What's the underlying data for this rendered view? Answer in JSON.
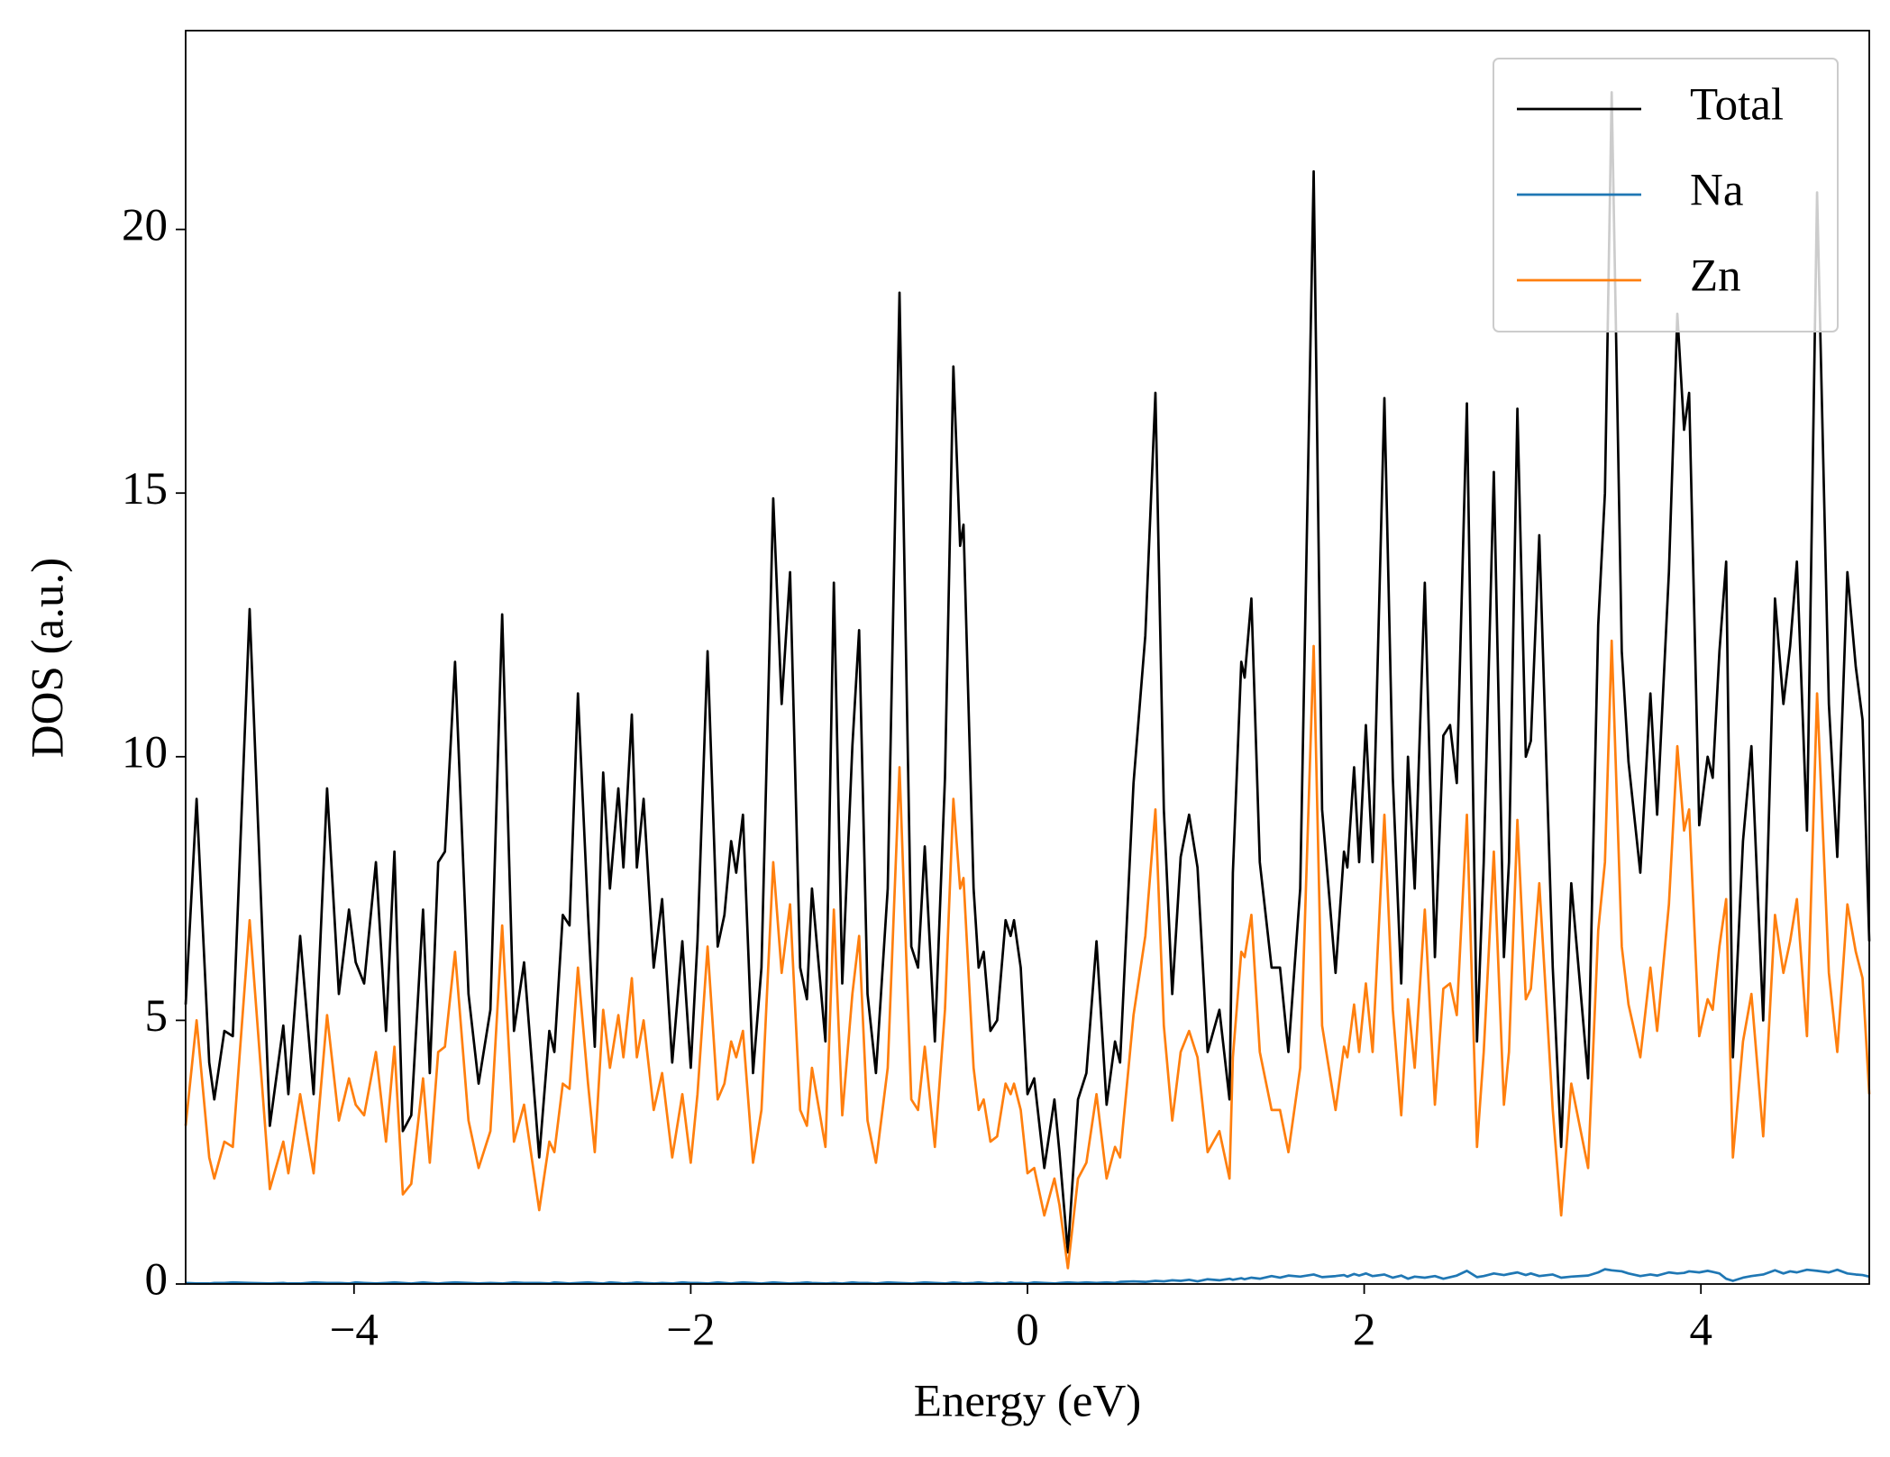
{
  "chart_data": {
    "type": "line",
    "xlabel": "Energy (eV)",
    "ylabel": "DOS (a.u.)",
    "xlim": [
      -5,
      5
    ],
    "ylim": [
      0,
      23.77
    ],
    "xticks": [
      {
        "value": -4,
        "label": "−4"
      },
      {
        "value": -2,
        "label": "−2"
      },
      0,
      2,
      4
    ],
    "yticks": [
      0,
      5,
      10,
      15,
      20
    ],
    "legend": "upper right",
    "x": [
      -5.0,
      -4.935,
      -4.86,
      -4.83,
      -4.77,
      -4.72,
      -4.62,
      -4.5,
      -4.42,
      -4.39,
      -4.32,
      -4.24,
      -4.16,
      -4.09,
      -4.03,
      -3.99,
      -3.94,
      -3.87,
      -3.81,
      -3.76,
      -3.71,
      -3.66,
      -3.59,
      -3.55,
      -3.5,
      -3.46,
      -3.4,
      -3.32,
      -3.26,
      -3.19,
      -3.12,
      -3.05,
      -2.99,
      -2.9,
      -2.84,
      -2.81,
      -2.76,
      -2.72,
      -2.67,
      -2.61,
      -2.57,
      -2.52,
      -2.48,
      -2.43,
      -2.4,
      -2.35,
      -2.32,
      -2.28,
      -2.22,
      -2.17,
      -2.11,
      -2.05,
      -2.0,
      -1.96,
      -1.9,
      -1.84,
      -1.8,
      -1.76,
      -1.73,
      -1.69,
      -1.63,
      -1.58,
      -1.51,
      -1.46,
      -1.41,
      -1.35,
      -1.31,
      -1.28,
      -1.2,
      -1.15,
      -1.1,
      -1.04,
      -1.0,
      -0.95,
      -0.9,
      -0.83,
      -0.76,
      -0.69,
      -0.65,
      -0.61,
      -0.55,
      -0.49,
      -0.44,
      -0.4,
      -0.38,
      -0.32,
      -0.29,
      -0.26,
      -0.22,
      -0.18,
      -0.13,
      -0.1,
      -0.08,
      -0.04,
      0.0,
      0.04,
      0.1,
      0.16,
      0.19,
      0.24,
      0.3,
      0.35,
      0.41,
      0.47,
      0.52,
      0.55,
      0.63,
      0.7,
      0.76,
      0.81,
      0.86,
      0.91,
      0.96,
      1.01,
      1.07,
      1.14,
      1.2,
      1.22,
      1.27,
      1.29,
      1.33,
      1.38,
      1.45,
      1.5,
      1.55,
      1.62,
      1.7,
      1.75,
      1.83,
      1.88,
      1.9,
      1.94,
      1.97,
      2.01,
      2.05,
      2.12,
      2.17,
      2.22,
      2.26,
      2.3,
      2.36,
      2.42,
      2.47,
      2.51,
      2.55,
      2.61,
      2.67,
      2.71,
      2.77,
      2.83,
      2.86,
      2.91,
      2.96,
      2.99,
      3.04,
      3.12,
      3.17,
      3.23,
      3.33,
      3.39,
      3.43,
      3.47,
      3.53,
      3.57,
      3.64,
      3.7,
      3.74,
      3.81,
      3.86,
      3.9,
      3.93,
      3.99,
      4.04,
      4.07,
      4.11,
      4.15,
      4.19,
      4.25,
      4.3,
      4.37,
      4.44,
      4.49,
      4.53,
      4.57,
      4.63,
      4.69,
      4.76,
      4.81,
      4.87,
      4.92,
      4.96,
      5.0
    ],
    "series": [
      {
        "name": "Total",
        "color": "#000000",
        "values": [
          5.3,
          9.2,
          4.2,
          3.5,
          4.8,
          4.7,
          12.8,
          3.0,
          4.9,
          3.6,
          6.6,
          3.6,
          9.4,
          5.5,
          7.1,
          6.1,
          5.7,
          8.0,
          4.8,
          8.2,
          2.9,
          3.2,
          7.1,
          4.0,
          8.0,
          8.2,
          11.8,
          5.5,
          3.8,
          5.2,
          12.7,
          4.8,
          6.1,
          2.4,
          4.8,
          4.4,
          7.0,
          6.8,
          11.2,
          7.0,
          4.5,
          9.7,
          7.5,
          9.4,
          7.9,
          10.8,
          7.9,
          9.2,
          6.0,
          7.3,
          4.2,
          6.5,
          4.1,
          6.5,
          12.0,
          6.4,
          7.0,
          8.4,
          7.8,
          8.9,
          4.0,
          6.0,
          14.9,
          11.0,
          13.5,
          6.0,
          5.4,
          7.5,
          4.6,
          13.3,
          5.7,
          10.2,
          12.4,
          5.5,
          4.0,
          7.5,
          18.8,
          6.4,
          6.0,
          8.3,
          4.6,
          9.6,
          17.4,
          14.0,
          14.4,
          7.5,
          6.0,
          6.3,
          4.8,
          5.0,
          6.9,
          6.6,
          6.9,
          6.0,
          3.6,
          3.9,
          2.2,
          3.5,
          2.5,
          0.6,
          3.5,
          4.0,
          6.5,
          3.4,
          4.6,
          4.2,
          9.5,
          12.3,
          16.9,
          9.0,
          5.5,
          8.1,
          8.9,
          7.9,
          4.4,
          5.2,
          3.5,
          7.8,
          11.8,
          11.5,
          13.0,
          8.0,
          6.0,
          6.0,
          4.4,
          7.5,
          21.1,
          9.0,
          5.9,
          8.2,
          7.9,
          9.8,
          8.0,
          10.6,
          8.0,
          16.8,
          9.6,
          5.7,
          10.0,
          7.5,
          13.3,
          6.2,
          10.4,
          10.6,
          9.5,
          16.7,
          4.6,
          8.0,
          15.4,
          6.2,
          8.0,
          16.6,
          10.0,
          10.3,
          14.2,
          6.0,
          2.6,
          7.6,
          3.9,
          12.5,
          15.0,
          22.6,
          12.0,
          9.9,
          7.8,
          11.2,
          8.9,
          13.5,
          18.4,
          16.2,
          16.9,
          8.7,
          10.0,
          9.6,
          12.0,
          13.7,
          4.3,
          8.4,
          10.2,
          5.0,
          13.0,
          11.0,
          12.1,
          13.7,
          8.6,
          20.7,
          11.0,
          8.1,
          13.5,
          11.7,
          10.7,
          6.5
        ]
      },
      {
        "name": "Na",
        "color": "#1f77b4",
        "values": [
          0.02,
          0.01,
          0.01,
          0.02,
          0.02,
          0.03,
          0.02,
          0.01,
          0.02,
          0.01,
          0.01,
          0.03,
          0.02,
          0.02,
          0.01,
          0.03,
          0.02,
          0.01,
          0.02,
          0.03,
          0.02,
          0.01,
          0.03,
          0.02,
          0.01,
          0.02,
          0.03,
          0.02,
          0.01,
          0.02,
          0.01,
          0.03,
          0.02,
          0.02,
          0.01,
          0.03,
          0.02,
          0.01,
          0.02,
          0.03,
          0.02,
          0.01,
          0.03,
          0.02,
          0.01,
          0.02,
          0.03,
          0.02,
          0.01,
          0.02,
          0.01,
          0.03,
          0.02,
          0.02,
          0.01,
          0.03,
          0.02,
          0.01,
          0.02,
          0.03,
          0.02,
          0.01,
          0.03,
          0.02,
          0.01,
          0.02,
          0.03,
          0.02,
          0.01,
          0.02,
          0.01,
          0.03,
          0.02,
          0.02,
          0.01,
          0.03,
          0.02,
          0.01,
          0.02,
          0.03,
          0.02,
          0.01,
          0.03,
          0.02,
          0.01,
          0.02,
          0.03,
          0.02,
          0.01,
          0.02,
          0.01,
          0.03,
          0.02,
          0.02,
          0.01,
          0.03,
          0.02,
          0.01,
          0.02,
          0.03,
          0.02,
          0.03,
          0.02,
          0.03,
          0.02,
          0.04,
          0.05,
          0.04,
          0.06,
          0.05,
          0.07,
          0.06,
          0.08,
          0.05,
          0.09,
          0.07,
          0.1,
          0.08,
          0.11,
          0.09,
          0.12,
          0.1,
          0.15,
          0.12,
          0.16,
          0.14,
          0.18,
          0.13,
          0.15,
          0.17,
          0.14,
          0.19,
          0.16,
          0.2,
          0.15,
          0.18,
          0.12,
          0.16,
          0.1,
          0.14,
          0.12,
          0.15,
          0.1,
          0.13,
          0.16,
          0.25,
          0.13,
          0.15,
          0.2,
          0.17,
          0.19,
          0.22,
          0.17,
          0.2,
          0.15,
          0.18,
          0.12,
          0.14,
          0.16,
          0.22,
          0.28,
          0.26,
          0.24,
          0.2,
          0.15,
          0.18,
          0.16,
          0.22,
          0.2,
          0.21,
          0.24,
          0.22,
          0.25,
          0.23,
          0.2,
          0.1,
          0.06,
          0.12,
          0.15,
          0.18,
          0.26,
          0.2,
          0.24,
          0.22,
          0.27,
          0.25,
          0.22,
          0.27,
          0.2,
          0.18,
          0.17,
          0.14
        ]
      },
      {
        "name": "Zn",
        "color": "#ff7f0e",
        "values": [
          3.0,
          5.0,
          2.4,
          2.0,
          2.7,
          2.6,
          6.9,
          1.8,
          2.7,
          2.1,
          3.6,
          2.1,
          5.1,
          3.1,
          3.9,
          3.4,
          3.2,
          4.4,
          2.7,
          4.5,
          1.7,
          1.9,
          3.9,
          2.3,
          4.4,
          4.5,
          6.3,
          3.1,
          2.2,
          2.9,
          6.8,
          2.7,
          3.4,
          1.4,
          2.7,
          2.5,
          3.8,
          3.7,
          6.0,
          3.8,
          2.5,
          5.2,
          4.1,
          5.1,
          4.3,
          5.8,
          4.3,
          5.0,
          3.3,
          4.0,
          2.4,
          3.6,
          2.3,
          3.6,
          6.4,
          3.5,
          3.8,
          4.6,
          4.3,
          4.8,
          2.3,
          3.3,
          8.0,
          5.9,
          7.2,
          3.3,
          3.0,
          4.1,
          2.6,
          7.1,
          3.2,
          5.5,
          6.6,
          3.1,
          2.3,
          4.1,
          9.8,
          3.5,
          3.3,
          4.5,
          2.6,
          5.2,
          9.2,
          7.5,
          7.7,
          4.1,
          3.3,
          3.5,
          2.7,
          2.8,
          3.8,
          3.6,
          3.8,
          3.3,
          2.1,
          2.2,
          1.3,
          2.0,
          1.5,
          0.3,
          2.0,
          2.3,
          3.6,
          2.0,
          2.6,
          2.4,
          5.1,
          6.6,
          9.0,
          4.9,
          3.1,
          4.4,
          4.8,
          4.3,
          2.5,
          2.9,
          2.0,
          4.3,
          6.3,
          6.2,
          7.0,
          4.4,
          3.3,
          3.3,
          2.5,
          4.1,
          12.1,
          4.9,
          3.3,
          4.5,
          4.3,
          5.3,
          4.4,
          5.7,
          4.4,
          8.9,
          5.2,
          3.2,
          5.4,
          4.1,
          7.1,
          3.4,
          5.6,
          5.7,
          5.1,
          8.9,
          2.6,
          4.4,
          8.2,
          3.4,
          4.4,
          8.8,
          5.4,
          5.6,
          7.6,
          3.3,
          1.3,
          3.8,
          2.2,
          6.7,
          8.0,
          12.2,
          6.4,
          5.3,
          4.3,
          6.0,
          4.8,
          7.2,
          10.2,
          8.6,
          9.0,
          4.7,
          5.4,
          5.2,
          6.4,
          7.3,
          2.4,
          4.6,
          5.5,
          2.8,
          7.0,
          5.9,
          6.5,
          7.3,
          4.7,
          11.2,
          5.9,
          4.4,
          7.2,
          6.3,
          5.8,
          3.6
        ]
      }
    ]
  }
}
